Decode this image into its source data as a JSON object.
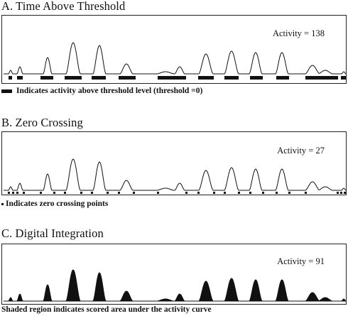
{
  "sections": [
    {
      "title": "A. Time Above Threshold",
      "activity_label": "Activity = 138",
      "caption": "Indicates activity above threshold level (threshold =0)",
      "legend_icon": "black-bar"
    },
    {
      "title": "B. Zero Crossing",
      "activity_label": "Activity = 27",
      "caption": "Indicates zero crossing points",
      "legend_icon": "black-dot"
    },
    {
      "title": "C. Digital Integration",
      "activity_label": "Activity = 91",
      "caption": "Shaded region indicates scored area under the activity curve",
      "legend_icon": "none"
    }
  ]
}
